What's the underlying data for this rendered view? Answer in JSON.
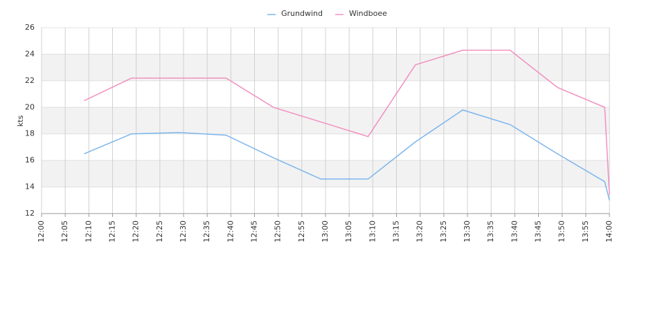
{
  "chart_data": {
    "type": "line",
    "y_label": "kts",
    "x": [
      "12:09",
      "12:19",
      "12:29",
      "12:39",
      "12:49",
      "12:59",
      "13:09",
      "13:19",
      "13:29",
      "13:39",
      "13:49",
      "13:59",
      "14:00"
    ],
    "series": [
      {
        "name": "Grundwind",
        "color": "#7cb5ec",
        "values": [
          16.5,
          18.0,
          18.1,
          17.9,
          16.2,
          14.6,
          14.6,
          17.4,
          19.8,
          18.7,
          16.5,
          14.4,
          13.0
        ]
      },
      {
        "name": "Windboee",
        "color": "#f28fbf",
        "values": [
          20.5,
          22.2,
          22.2,
          22.2,
          20.0,
          18.9,
          17.8,
          23.2,
          24.3,
          24.3,
          21.5,
          20.0,
          13.4
        ]
      }
    ],
    "xlim": [
      "12:00",
      "14:00"
    ],
    "xticks": [
      "12:00",
      "12:05",
      "12:10",
      "12:15",
      "12:20",
      "12:25",
      "12:30",
      "12:35",
      "12:40",
      "12:45",
      "12:50",
      "12:55",
      "13:00",
      "13:05",
      "13:10",
      "13:15",
      "13:20",
      "13:25",
      "13:30",
      "13:35",
      "13:40",
      "13:45",
      "13:50",
      "13:55",
      "14:00"
    ],
    "ylim": [
      12,
      26
    ],
    "yticks": [
      12,
      14,
      16,
      18,
      20,
      22,
      24,
      26
    ],
    "grid": true,
    "alternate_bands": true,
    "legend": "top"
  }
}
